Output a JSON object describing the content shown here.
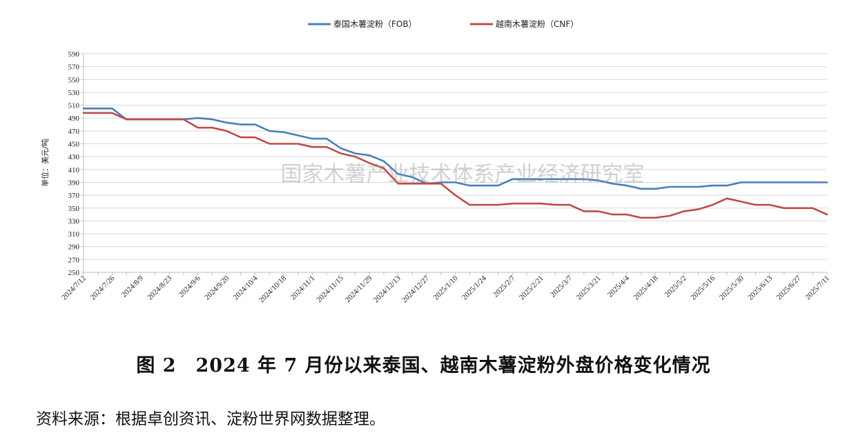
{
  "figure": {
    "caption": "图 2　2024 年 7 月份以来泰国、越南木薯淀粉外盘价格变化情况",
    "source": "资料来源：根据卓创资讯、淀粉世界网数据整理。",
    "watermark": "国家木薯产业技术体系产业经济研究室"
  },
  "chart_data": {
    "type": "line",
    "title": "",
    "xlabel": "",
    "ylabel": "单位：美元/吨",
    "ylim": [
      250,
      590
    ],
    "yticks": [
      250,
      270,
      290,
      310,
      330,
      350,
      370,
      390,
      410,
      430,
      450,
      470,
      490,
      510,
      530,
      550,
      570,
      590
    ],
    "grid": "horizontal",
    "legend_position": "top",
    "x_tick_labels": [
      "2024/7/12",
      "2024/7/26",
      "2024/8/9",
      "2024/8/23",
      "2024/9/6",
      "2024/9/20",
      "2024/10/4",
      "2024/10/18",
      "2024/11/1",
      "2024/11/15",
      "2024/11/29",
      "2024/12/13",
      "2024/12/27",
      "2025/1/10",
      "2025/1/24",
      "2025/2/7",
      "2025/2/21",
      "2025/3/7",
      "2025/3/21",
      "2025/4/4",
      "2025/4/18",
      "2025/5/2",
      "2025/5/16",
      "2025/5/30",
      "2025/6/13",
      "2025/6/27",
      "2025/7/11"
    ],
    "x": [
      "2024/7/12",
      "2024/7/19",
      "2024/7/26",
      "2024/8/2",
      "2024/8/9",
      "2024/8/16",
      "2024/8/23",
      "2024/8/30",
      "2024/9/6",
      "2024/9/13",
      "2024/9/20",
      "2024/9/27",
      "2024/10/4",
      "2024/10/11",
      "2024/10/18",
      "2024/10/25",
      "2024/11/1",
      "2024/11/8",
      "2024/11/15",
      "2024/11/22",
      "2024/11/29",
      "2024/12/6",
      "2024/12/13",
      "2024/12/20",
      "2024/12/27",
      "2025/1/3",
      "2025/1/10",
      "2025/1/17",
      "2025/1/24",
      "2025/1/31",
      "2025/2/7",
      "2025/2/14",
      "2025/2/21",
      "2025/2/28",
      "2025/3/7",
      "2025/3/14",
      "2025/3/21",
      "2025/3/28",
      "2025/4/4",
      "2025/4/11",
      "2025/4/18",
      "2025/4/25",
      "2025/5/2",
      "2025/5/9",
      "2025/5/16",
      "2025/5/23",
      "2025/5/30",
      "2025/6/6",
      "2025/6/13",
      "2025/6/20",
      "2025/6/27",
      "2025/7/4",
      "2025/7/11"
    ],
    "series": [
      {
        "name": "泰国木薯淀粉（FOB）",
        "color": "#4a7ebb",
        "values": [
          505,
          505,
          505,
          488,
          488,
          488,
          488,
          488,
          490,
          488,
          483,
          480,
          480,
          470,
          468,
          463,
          458,
          458,
          443,
          435,
          432,
          423,
          403,
          398,
          388,
          390,
          390,
          385,
          385,
          385,
          395,
          395,
          395,
          395,
          395,
          395,
          393,
          388,
          385,
          380,
          380,
          383,
          383,
          383,
          385,
          385,
          390,
          390,
          390,
          390,
          390,
          390,
          390
        ]
      },
      {
        "name": "越南木薯淀粉（CNF）",
        "color": "#be4b48",
        "values": [
          498,
          498,
          498,
          488,
          488,
          488,
          488,
          488,
          475,
          475,
          470,
          460,
          460,
          450,
          450,
          450,
          445,
          445,
          435,
          430,
          420,
          412,
          388,
          388,
          388,
          388,
          370,
          355,
          355,
          355,
          357,
          357,
          357,
          355,
          355,
          345,
          345,
          340,
          340,
          335,
          335,
          338,
          345,
          348,
          355,
          365,
          360,
          355,
          355,
          350,
          350,
          350,
          340
        ]
      }
    ]
  }
}
